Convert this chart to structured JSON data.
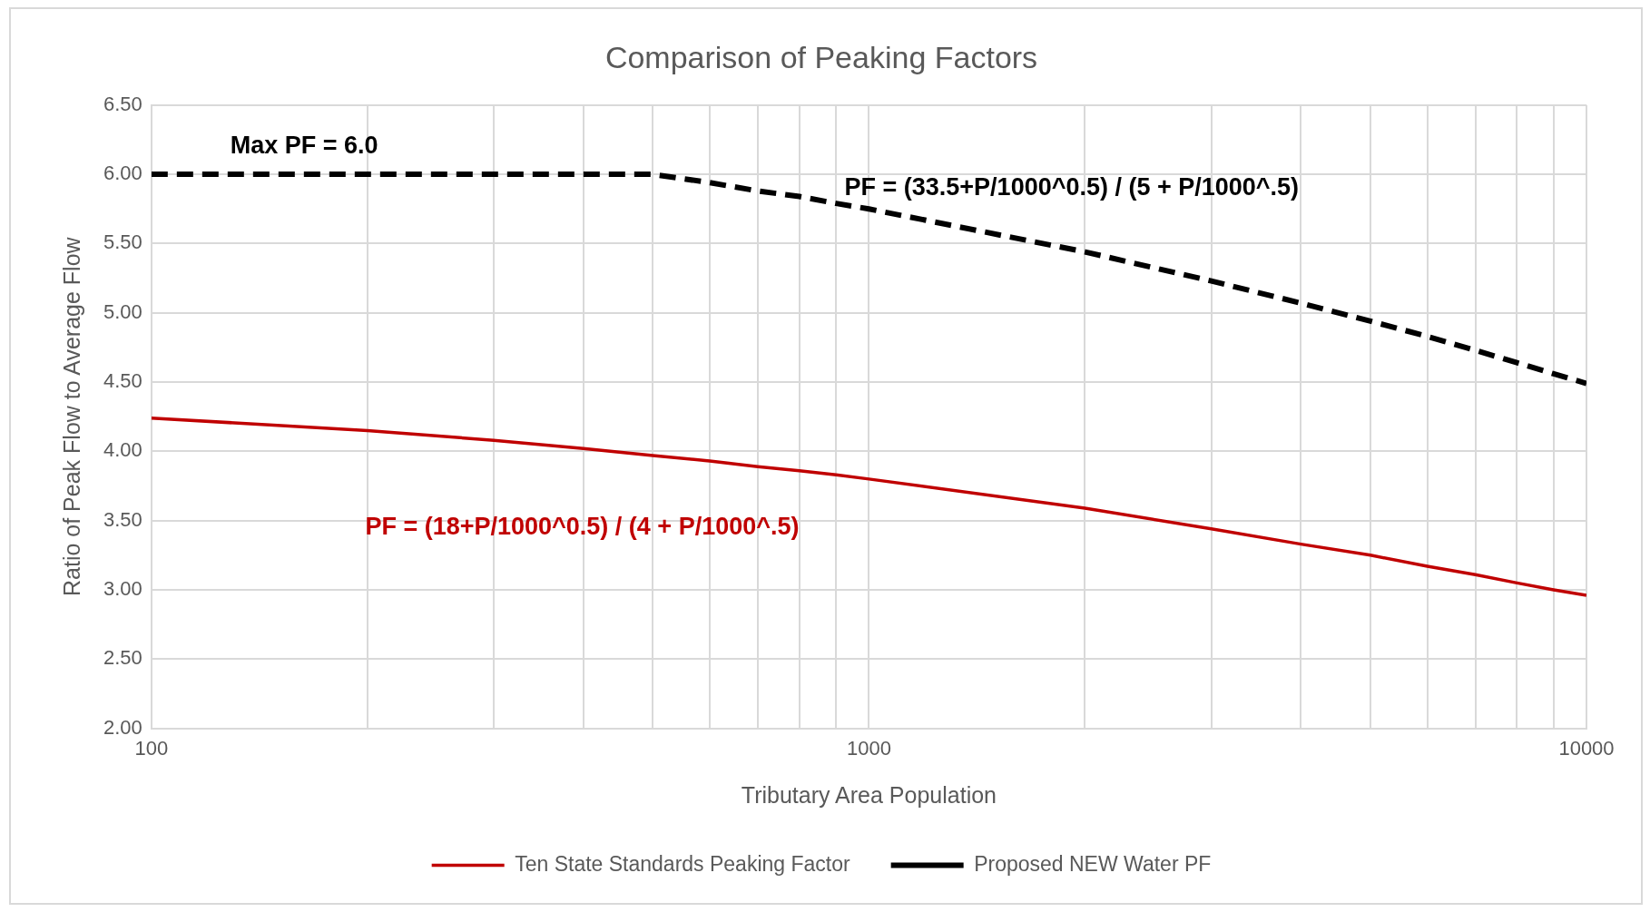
{
  "chart_data": {
    "type": "line",
    "title": "Comparison of Peaking Factors",
    "xlabel": "Tributary Area Population",
    "ylabel": "Ratio of Peak Flow to Average Flow",
    "x": [
      100,
      200,
      300,
      400,
      500,
      600,
      700,
      800,
      900,
      1000,
      2000,
      3000,
      4000,
      5000,
      6000,
      7000,
      8000,
      9000,
      10000
    ],
    "series": [
      {
        "name": "Ten State Standards Peaking Factor",
        "color": "#c00000",
        "line_style": "solid",
        "values": [
          4.24,
          4.15,
          4.08,
          4.02,
          3.97,
          3.93,
          3.89,
          3.86,
          3.83,
          3.8,
          3.59,
          3.44,
          3.33,
          3.25,
          3.17,
          3.11,
          3.05,
          3.0,
          2.96
        ]
      },
      {
        "name": "Proposed NEW Water PF",
        "color": "#000000",
        "line_style": "dashed",
        "values": [
          6.0,
          6.0,
          6.0,
          6.0,
          6.0,
          5.94,
          5.88,
          5.84,
          5.79,
          5.75,
          5.44,
          5.23,
          5.07,
          4.94,
          4.83,
          4.73,
          4.64,
          4.56,
          4.49
        ]
      }
    ],
    "log": "x",
    "xlim": [
      100,
      10000
    ],
    "xticks": [
      100,
      {
        "value": 200,
        "label": null
      },
      {
        "value": 300,
        "label": null
      },
      {
        "value": 400,
        "label": null
      },
      {
        "value": 500,
        "label": null
      },
      {
        "value": 600,
        "label": null
      },
      {
        "value": 700,
        "label": null
      },
      {
        "value": 800,
        "label": null
      },
      {
        "value": 900,
        "label": null
      },
      1000,
      {
        "value": 2000,
        "label": null
      },
      {
        "value": 3000,
        "label": null
      },
      {
        "value": 4000,
        "label": null
      },
      {
        "value": 5000,
        "label": null
      },
      {
        "value": 6000,
        "label": null
      },
      {
        "value": 7000,
        "label": null
      },
      {
        "value": 8000,
        "label": null
      },
      {
        "value": 9000,
        "label": null
      },
      10000
    ],
    "ylim": [
      2,
      6.5
    ],
    "yticks": [
      {
        "value": 2,
        "label": "2.00"
      },
      {
        "value": 2.5,
        "label": "2.50"
      },
      {
        "value": 3,
        "label": "3.00"
      },
      {
        "value": 3.5,
        "label": "3.50"
      },
      {
        "value": 4,
        "label": "4.00"
      },
      {
        "value": 4.5,
        "label": "4.50"
      },
      {
        "value": 5,
        "label": "5.00"
      },
      {
        "value": 5.5,
        "label": "5.50"
      },
      {
        "value": 6,
        "label": "6.00"
      },
      {
        "value": 6.5,
        "label": "6.50"
      }
    ],
    "grid": true,
    "legend": "bottom",
    "marker": "none",
    "annotations": [
      "Max PF = 6.0",
      "PF = (33.5+P/1000^0.5) / (5 + P/1000^.5)",
      "PF = (18+P/1000^0.5) / (4 + P/1000^.5)"
    ]
  }
}
